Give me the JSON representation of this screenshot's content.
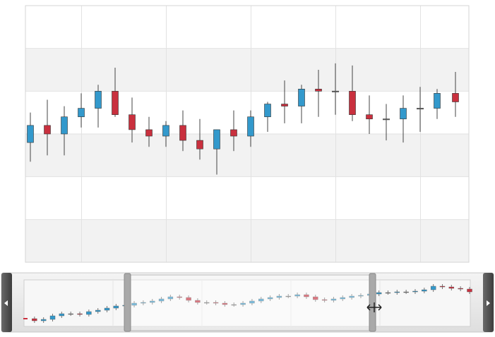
{
  "chart_data": [
    {
      "type": "candlestick",
      "open": [
        28,
        32,
        30,
        34,
        36,
        40,
        34.5,
        31,
        29.5,
        32,
        28.5,
        26.5,
        31,
        29.5,
        34,
        37,
        36.5,
        40.5,
        40,
        40,
        34.5,
        33.5,
        33.5,
        36,
        36,
        39.5
      ],
      "high": [
        35,
        38,
        36.5,
        39.5,
        41.5,
        45.5,
        38.5,
        34,
        33,
        35.5,
        33.5,
        31,
        35.5,
        35.5,
        37.5,
        42.5,
        41.5,
        45,
        46.5,
        46,
        39,
        37,
        39,
        41,
        40.5,
        44.5
      ],
      "low": [
        23.5,
        25,
        25,
        31.5,
        31.5,
        34,
        28,
        27,
        27,
        26,
        24,
        20.5,
        26,
        27,
        30.5,
        32.5,
        32.5,
        34,
        34.5,
        33,
        30,
        28.5,
        28,
        30.5,
        33.5,
        34
      ],
      "close": [
        32,
        30,
        34,
        36,
        40,
        34.5,
        31,
        29.5,
        32,
        28.5,
        26.5,
        31,
        29.5,
        34,
        37,
        36.5,
        40.5,
        40,
        40,
        34.5,
        33.5,
        33.5,
        36,
        36,
        39.5,
        37.5
      ],
      "up_color": "#3399cc",
      "down_color": "#c9303e",
      "flat_color": "#555555",
      "ylim": [
        0,
        60
      ],
      "yticks": [
        0,
        10,
        20,
        30,
        40,
        50,
        60
      ],
      "grid": true
    },
    {
      "type": "navigator",
      "values": [
        10,
        7,
        9,
        14,
        17,
        17,
        16,
        20,
        22,
        25,
        28,
        29,
        32,
        33,
        35,
        38,
        41,
        40,
        36,
        33,
        33,
        32,
        30,
        30,
        32,
        35,
        38,
        40,
        42,
        42,
        44,
        41,
        37,
        36,
        38,
        40,
        42,
        43,
        45,
        47,
        47,
        48,
        48,
        49,
        51,
        56,
        55,
        53,
        52,
        48
      ],
      "up_color": "#3399cc",
      "down_color": "#c9303e",
      "flat_color": "#666666",
      "ylim": [
        0,
        64
      ]
    }
  ]
}
